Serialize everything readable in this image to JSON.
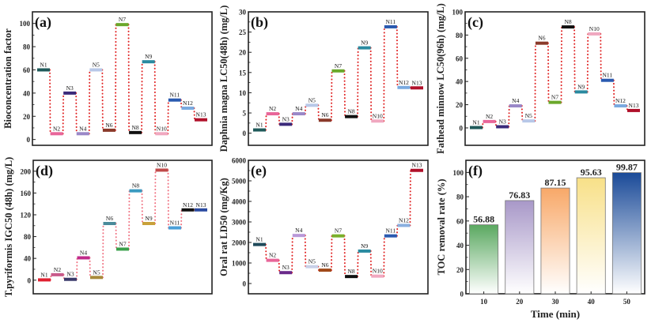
{
  "chart_data": [
    {
      "id": "a",
      "type": "line",
      "style": "dotted-energy-levels",
      "panel_label": "(a)",
      "title": "",
      "xlabel": "",
      "ylabel": "Bioconcentration factor",
      "ylim": [
        -5,
        110
      ],
      "yticks": [
        0,
        20,
        40,
        60,
        80,
        100
      ],
      "categories": [
        "N1",
        "N2",
        "N3",
        "N4",
        "N5",
        "N6",
        "N7",
        "N8",
        "N9",
        "N10",
        "N11",
        "N12",
        "N13"
      ],
      "values": [
        60,
        5,
        40,
        5,
        60,
        8,
        99,
        6,
        67,
        5,
        34,
        27,
        17
      ],
      "marker_colors": [
        "#1f5a5a",
        "#e8669a",
        "#3a2a7a",
        "#9a88c8",
        "#b8c8e8",
        "#8a3a2a",
        "#6aa82a",
        "#111111",
        "#2a8aa0",
        "#f0a8c0",
        "#2a5ab0",
        "#7aaae0",
        "#b0102a"
      ],
      "line_color": "#e02020"
    },
    {
      "id": "b",
      "type": "line",
      "style": "dotted-energy-levels",
      "panel_label": "(b)",
      "title": "",
      "xlabel": "",
      "ylabel": "Daphnia magna LC50(48h) (mg/L)",
      "ylim": [
        -3,
        30
      ],
      "yticks": [
        0,
        5,
        10,
        15,
        20,
        25,
        30
      ],
      "categories": [
        "N1",
        "N2",
        "N3",
        "N4",
        "N5",
        "N6",
        "N7",
        "N8",
        "N9",
        "N10",
        "N11",
        "N12",
        "N13"
      ],
      "values": [
        0.8,
        4.8,
        2.2,
        4.8,
        6.9,
        3.2,
        15.4,
        4.1,
        21.1,
        3.0,
        26.3,
        11.3,
        11.2
      ],
      "marker_colors": [
        "#1f5a5a",
        "#e8669a",
        "#3a2a7a",
        "#9a88c8",
        "#b8c8e8",
        "#8a3a2a",
        "#6aa82a",
        "#111111",
        "#2a8aa0",
        "#f0a8c0",
        "#2a5ab0",
        "#7aaae0",
        "#b0102a"
      ],
      "line_color": "#e02020"
    },
    {
      "id": "c",
      "type": "line",
      "style": "dotted-energy-levels",
      "panel_label": "(c)",
      "title": "",
      "xlabel": "",
      "ylabel": "Fathead minnow LC50(96h) (mg/L)",
      "ylim": [
        -15,
        100
      ],
      "yticks": [
        0,
        20,
        40,
        60,
        80,
        100
      ],
      "categories": [
        "N1",
        "N2",
        "N3",
        "N4",
        "N5",
        "N6",
        "N7",
        "N8",
        "N9",
        "N10",
        "N11",
        "N12",
        "N13"
      ],
      "values": [
        0.3,
        5.5,
        1,
        19,
        6,
        73,
        22,
        87,
        31,
        81,
        41,
        19,
        15
      ],
      "marker_colors": [
        "#1f5a5a",
        "#e8669a",
        "#3a2a7a",
        "#9a88c8",
        "#b8c8e8",
        "#8a3a2a",
        "#6aa82a",
        "#111111",
        "#2a8aa0",
        "#f0a8c0",
        "#2a5ab0",
        "#7aaae0",
        "#b0102a"
      ],
      "line_color": "#e02020"
    },
    {
      "id": "d",
      "type": "line",
      "style": "dotted-energy-levels",
      "panel_label": "(d)",
      "title": "",
      "xlabel": "",
      "ylabel": "T.pyriformis IGC50 (48h) (mg/L)",
      "ylim": [
        -25,
        220
      ],
      "yticks": [
        0,
        40,
        80,
        120,
        160,
        200
      ],
      "categories": [
        "N1",
        "N2",
        "N3",
        "N4",
        "N5",
        "N6",
        "N7",
        "N8",
        "N9",
        "N10",
        "N11",
        "N12",
        "N13"
      ],
      "values": [
        0.5,
        10,
        1.5,
        41,
        5,
        104,
        57,
        164,
        104,
        202,
        96,
        129,
        129
      ],
      "marker_colors": [
        "#e02030",
        "#c85a8a",
        "#3a3a6a",
        "#c02a8a",
        "#a88a3a",
        "#4a8a9a",
        "#3aa04a",
        "#3a9ac0",
        "#c8a03a",
        "#c04a4a",
        "#4aa0d8",
        "#111111",
        "#2a4aa0"
      ],
      "line_color": "#f07080"
    },
    {
      "id": "e",
      "type": "line",
      "style": "dotted-energy-levels",
      "panel_label": "(e)",
      "title": "",
      "xlabel": "",
      "ylabel": "Oral rat LD50 (mg/Kg)",
      "ylim": [
        -500,
        6000
      ],
      "yticks": [
        0,
        1000,
        2000,
        3000,
        4000,
        5000,
        6000
      ],
      "categories": [
        "N1",
        "N2",
        "N3",
        "N4",
        "N5",
        "N6",
        "N7",
        "N8",
        "N9",
        "N10",
        "N11",
        "N12",
        "N13"
      ],
      "values": [
        1900,
        1130,
        530,
        2340,
        820,
        650,
        2320,
        340,
        1580,
        360,
        2320,
        2830,
        5510
      ],
      "marker_colors": [
        "#1f4a5a",
        "#e8669a",
        "#6a2a8a",
        "#b898d8",
        "#c8d0e8",
        "#a04a1a",
        "#7ab02a",
        "#111111",
        "#2a8aa0",
        "#f0a8c0",
        "#2a5ab0",
        "#8ab0e0",
        "#b0102a"
      ],
      "line_color": "#e02020"
    },
    {
      "id": "f",
      "type": "bar",
      "panel_label": "(f)",
      "title": "",
      "xlabel": "Time (min)",
      "ylabel": "TOC removal rate (%)",
      "ylim": [
        0,
        110
      ],
      "yticks": [
        0,
        20,
        40,
        60,
        80,
        100
      ],
      "categories": [
        "10",
        "20",
        "30",
        "40",
        "50"
      ],
      "values": [
        56.88,
        76.83,
        87.15,
        95.63,
        99.87
      ],
      "data_labels": [
        "56.88",
        "76.83",
        "87.15",
        "95.63",
        "99.87"
      ],
      "bar_colors": [
        "#5aa860",
        "#a898c8",
        "#f8a868",
        "#f8e088",
        "#1a4a98"
      ]
    }
  ]
}
